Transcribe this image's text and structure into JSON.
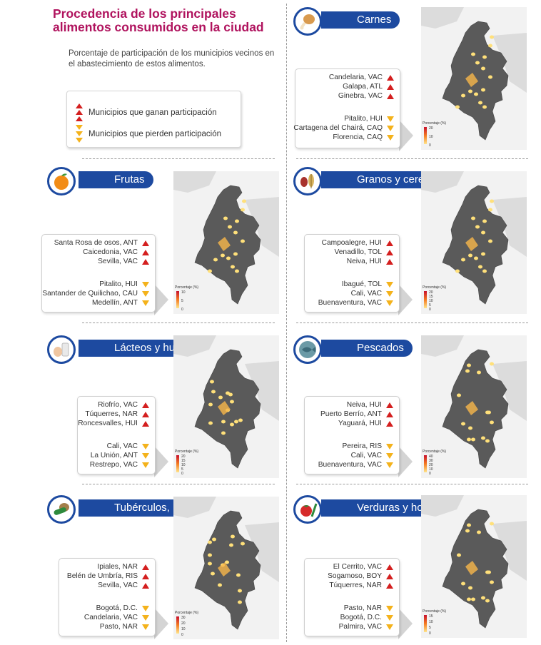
{
  "header": {
    "title": "Procedencia de los principales alimentos consumidos en la ciudad",
    "subtitle": "Porcentaje de participación de los municipios vecinos en el abastecimiento de estos alimentos."
  },
  "legend": {
    "gain_label": "Municipios que ganan participación",
    "lose_label": "Municipios que pierden participación"
  },
  "colors": {
    "title": "#b0135e",
    "pill": "#1d4aa0",
    "gain": "#d41f1f",
    "lose": "#f4b21b",
    "map_dark": "#5a5a5a"
  },
  "scale_title": "Porcentaje (%)",
  "panels": {
    "carnes": {
      "label": "Carnes",
      "icon": "drumstick-icon",
      "gain": [
        "Candelaria, VAC",
        "Galapa, ATL",
        "Ginebra, VAC"
      ],
      "lose": [
        "Pitalito, HUI",
        "Cartagena del Chairá, CAQ",
        "Florencia, CAQ"
      ],
      "scale": [
        "20",
        "10",
        "0"
      ]
    },
    "frutas": {
      "label": "Frutas",
      "icon": "orange-fruit-icon",
      "gain": [
        "Santa Rosa de osos, ANT",
        "Caicedonia, VAC",
        "Sevilla, VAC"
      ],
      "lose": [
        "Pitalito, HUI",
        "Santander de Quilichao, CAU",
        "Medellín, ANT"
      ],
      "scale": [
        "10",
        "5",
        "0"
      ]
    },
    "granos": {
      "label": "Granos y cereales",
      "icon": "beans-grain-icon",
      "gain": [
        "Campoalegre, HUI",
        "Venadillo, TOL",
        "Neiva, HUI"
      ],
      "lose": [
        "Ibagué, TOL",
        "Cali, VAC",
        "Buenaventura, VAC"
      ],
      "scale": [
        "20",
        "15",
        "10",
        "5",
        "0"
      ]
    },
    "lacteos": {
      "label": "Lácteos y huevos",
      "icon": "milk-eggs-icon",
      "gain": [
        "Riofrío, VAC",
        "Túquerres, NAR",
        "Roncesvalles, HUI"
      ],
      "lose": [
        "Cali, VAC",
        "La Unión, ANT",
        "Restrepo, VAC"
      ],
      "scale": [
        "20",
        "15",
        "10",
        "5",
        "0"
      ]
    },
    "pescados": {
      "label": "Pescados",
      "icon": "fish-icon",
      "gain": [
        "Neiva, HUI",
        "Puerto Berrío, ANT",
        "Yaguará, HUI"
      ],
      "lose": [
        "Pereira, RIS",
        "Cali, VAC",
        "Buenaventura, VAC"
      ],
      "scale": [
        "40",
        "30",
        "20",
        "10",
        "0"
      ]
    },
    "tuberculos": {
      "label": "Tubérculos, raíces y plátanos",
      "icon": "cucumber-potato-icon",
      "gain": [
        "Ipiales, NAR",
        "Belén de Umbría, RIS",
        "Sevilla, VAC"
      ],
      "lose": [
        "Bogotá, D.C.",
        "Candelaria, VAC",
        "Pasto, NAR"
      ],
      "scale": [
        "30",
        "20",
        "10",
        "0"
      ]
    },
    "verduras": {
      "label": "Verduras y hortalizas",
      "icon": "tomato-veg-icon",
      "gain": [
        "El Cerrito, VAC",
        "Sogamoso, BOY",
        "Túquerres, NAR"
      ],
      "lose": [
        "Pasto, NAR",
        "Bogotá, D.C.",
        "Palmira, VAC"
      ],
      "scale": [
        "15",
        "10",
        "5",
        "0"
      ]
    }
  }
}
